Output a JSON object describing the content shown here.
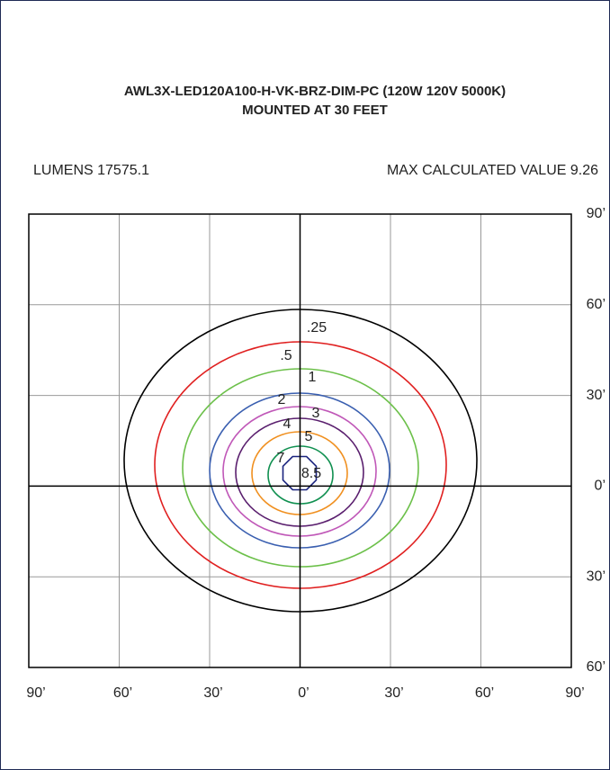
{
  "header": {
    "title_lines": [
      "AWL3X-LED120A100-H-VK-BRZ-DIM-PC (120W 120V 5000K)",
      "MOUNTED AT 30 FEET"
    ],
    "lumens": "LUMENS 17575.1",
    "max_value": "MAX CALCULATED VALUE 9.26"
  },
  "plot": {
    "right_labels": [
      "90’",
      "60’",
      "30’",
      "0’",
      "30’",
      "60’"
    ],
    "bottom_labels": [
      "90’",
      "60’",
      "30’",
      "0’",
      "30’",
      "60’",
      "90’"
    ],
    "contours": [
      {
        "label": ".25",
        "color": "#000000"
      },
      {
        "label": ".5",
        "color": "#e02020"
      },
      {
        "label": "1",
        "color": "#6cc04a"
      },
      {
        "label": "2",
        "color": "#3a5fb0"
      },
      {
        "label": "3",
        "color": "#c058b8"
      },
      {
        "label": "4",
        "color": "#5a1f6e"
      },
      {
        "label": "5",
        "color": "#f09020"
      },
      {
        "label": "7",
        "color": "#109050"
      },
      {
        "label": "8.5",
        "color": "#1a237e"
      }
    ]
  }
}
